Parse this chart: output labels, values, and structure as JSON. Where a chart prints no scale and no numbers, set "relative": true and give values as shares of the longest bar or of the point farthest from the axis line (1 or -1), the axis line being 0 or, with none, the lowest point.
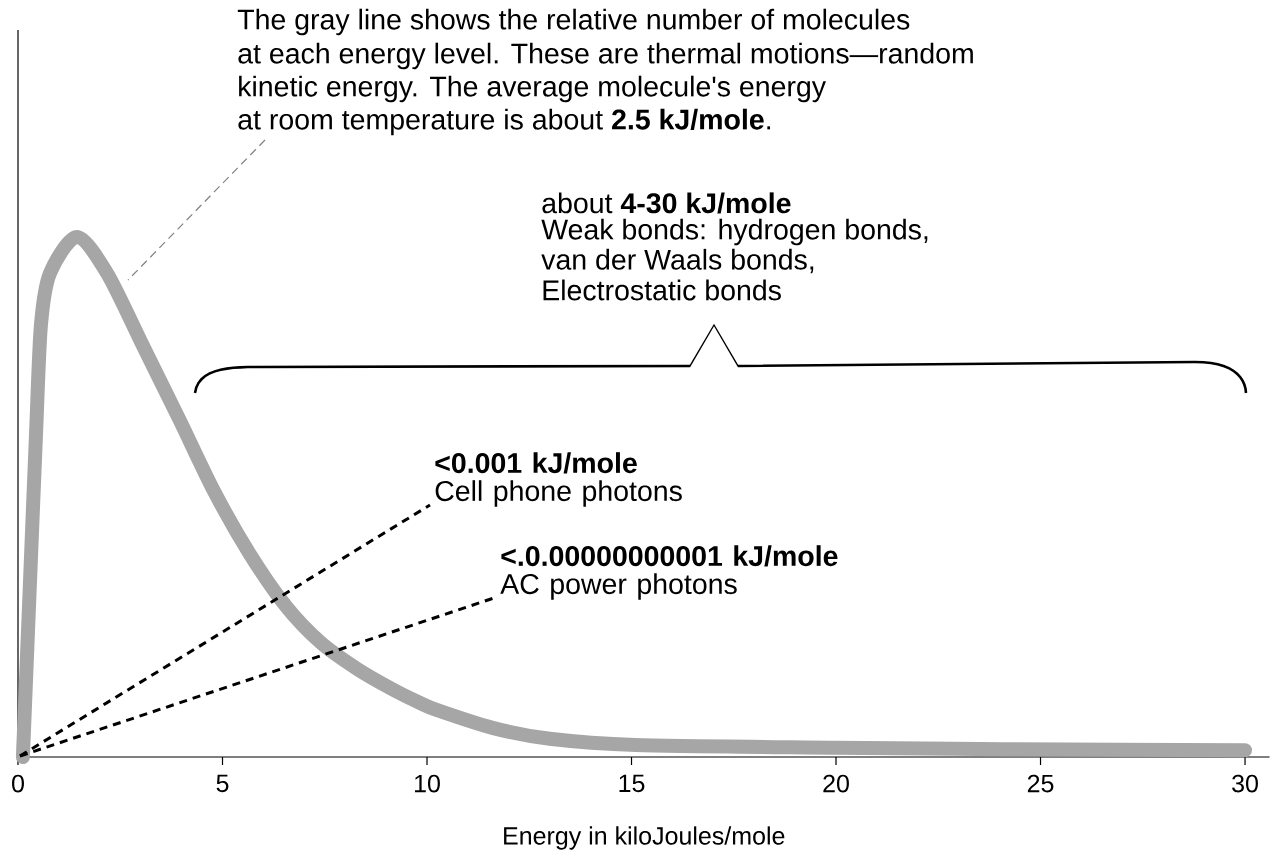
{
  "chart_data": {
    "type": "line",
    "relative": true,
    "xlabel": "Energy in kiloJoules/mole",
    "xlim": [
      0,
      30.6
    ],
    "xticks": [
      0,
      5,
      10,
      15,
      20,
      25,
      30
    ],
    "series": [
      {
        "color": "#a6a6a6",
        "x": [
          0.12,
          0.3,
          0.44,
          0.56,
          0.78,
          1.44,
          2.18,
          3.06,
          3.94,
          4.8,
          5.67,
          6.55,
          7.4,
          8.28,
          9.16,
          9.8,
          10.25,
          11.6,
          13.0,
          15.1,
          19.97,
          24.1,
          30
        ],
        "values": [
          0,
          0.35,
          0.62,
          0.83,
          0.93,
          1.0,
          0.93,
          0.79,
          0.65,
          0.51,
          0.39,
          0.29,
          0.22,
          0.17,
          0.13,
          0.105,
          0.09,
          0.056,
          0.035,
          0.023,
          0.018,
          0.015,
          0.013
        ]
      }
    ],
    "annotations": [
      "The gray line shows the relative number of molecules",
      "at each energy level. These are thermal motions—random",
      "kinetic energy. The average molecule's energy",
      "at room temperature is about **2.5 kJ/mole**.",
      "about **4-30 kJ/mole**",
      "Weak bonds: hydrogen bonds,",
      "van der Waals bonds,",
      "Electrostatic bonds",
      "**<0.001 kJ/mole** Cell phone photons",
      "**<.0.00000000001 kJ/mole** AC power photons"
    ]
  }
}
